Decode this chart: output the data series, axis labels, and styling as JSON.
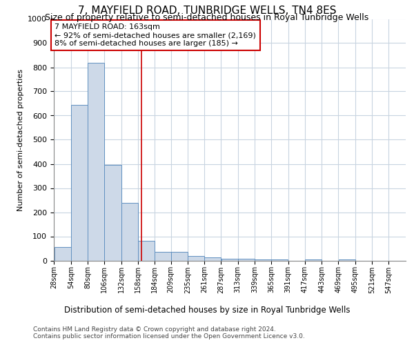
{
  "title": "7, MAYFIELD ROAD, TUNBRIDGE WELLS, TN4 8ES",
  "subtitle": "Size of property relative to semi-detached houses in Royal Tunbridge Wells",
  "xlabel_bottom": "Distribution of semi-detached houses by size in Royal Tunbridge Wells",
  "ylabel": "Number of semi-detached properties",
  "footer1": "Contains HM Land Registry data © Crown copyright and database right 2024.",
  "footer2": "Contains public sector information licensed under the Open Government Licence v3.0.",
  "bar_color": "#cdd9e8",
  "bar_edge_color": "#6090c0",
  "grid_color": "#c8d4e0",
  "vline_color": "#cc0000",
  "annotation_box_color": "#cc0000",
  "annotation_text": "7 MAYFIELD ROAD: 163sqm\n← 92% of semi-detached houses are smaller (2,169)\n8% of semi-detached houses are larger (185) →",
  "subject_size": 163,
  "bins": [
    28,
    54,
    80,
    106,
    132,
    158,
    184,
    209,
    235,
    261,
    287,
    313,
    339,
    365,
    391,
    417,
    443,
    469,
    495,
    521,
    547
  ],
  "bin_labels": [
    "28sqm",
    "54sqm",
    "80sqm",
    "106sqm",
    "132sqm",
    "158sqm",
    "184sqm",
    "209sqm",
    "235sqm",
    "261sqm",
    "287sqm",
    "313sqm",
    "339sqm",
    "365sqm",
    "391sqm",
    "417sqm",
    "443sqm",
    "469sqm",
    "495sqm",
    "521sqm",
    "547sqm"
  ],
  "values": [
    55,
    645,
    820,
    395,
    238,
    82,
    35,
    35,
    20,
    12,
    8,
    6,
    5,
    5,
    0,
    5,
    0,
    5,
    0,
    0,
    0
  ],
  "ylim": [
    0,
    1000
  ],
  "yticks": [
    0,
    100,
    200,
    300,
    400,
    500,
    600,
    700,
    800,
    900,
    1000
  ],
  "background_color": "#ffffff",
  "title_fontsize": 11,
  "subtitle_fontsize": 9,
  "annotation_fontsize": 8
}
